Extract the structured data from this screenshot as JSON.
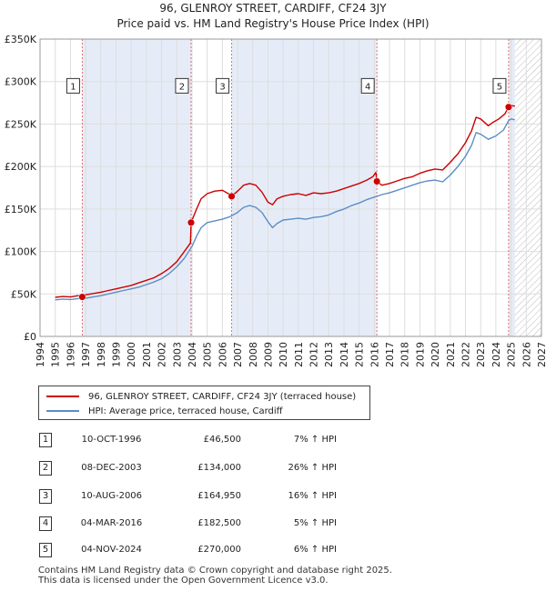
{
  "chart_data": {
    "type": "line",
    "title": "96, GLENROY STREET, CARDIFF, CF24 3JY",
    "subtitle": "Price paid vs. HM Land Registry's House Price Index (HPI)",
    "xlim": [
      1994,
      2027
    ],
    "ylim": [
      0,
      350000
    ],
    "y_ticks": [
      0,
      50000,
      100000,
      150000,
      200000,
      250000,
      300000,
      350000
    ],
    "y_tick_labels": [
      "£0",
      "£50K",
      "£100K",
      "£150K",
      "£200K",
      "£250K",
      "£300K",
      "£350K"
    ],
    "x_ticks": [
      1994,
      1995,
      1996,
      1997,
      1998,
      1999,
      2000,
      2001,
      2002,
      2003,
      2004,
      2005,
      2006,
      2007,
      2008,
      2009,
      2010,
      2011,
      2012,
      2013,
      2014,
      2015,
      2016,
      2017,
      2018,
      2019,
      2020,
      2021,
      2022,
      2023,
      2024,
      2025,
      2026,
      2027
    ],
    "x_tick_labels": [
      "1994",
      "1995",
      "1996",
      "1997",
      "1998",
      "1999",
      "2000",
      "2001",
      "2002",
      "2003",
      "2004",
      "2005",
      "2006",
      "2007",
      "2008",
      "2009",
      "2010",
      "2011",
      "2012",
      "2013",
      "2014",
      "2015",
      "2016",
      "2017",
      "2018",
      "2019",
      "2020",
      "2021",
      "2022",
      "2023",
      "2024",
      "2025",
      "2026",
      "2027"
    ],
    "data_start": 1995.0,
    "data_end": 2025.25,
    "colors": {
      "property": "#cc0000",
      "hpi": "#5b8ec4",
      "shade": "#e6ecf7",
      "grid": "#dddddd",
      "marker_line": "#e07070",
      "hatch": "#bbbbbb"
    },
    "series": [
      {
        "name": "96, GLENROY STREET, CARDIFF, CF24 3JY (terraced house)",
        "color": "#cc0000",
        "x": [
          1995.0,
          1995.5,
          1996.0,
          1996.5,
          1996.78,
          1997.0,
          1997.5,
          1998.0,
          1998.5,
          1999.0,
          1999.5,
          2000.0,
          2000.5,
          2001.0,
          2001.5,
          2002.0,
          2002.5,
          2003.0,
          2003.5,
          2003.9,
          2003.94,
          2004.3,
          2004.6,
          2005.0,
          2005.5,
          2006.0,
          2006.5,
          2006.61,
          2007.0,
          2007.4,
          2007.8,
          2008.2,
          2008.6,
          2009.0,
          2009.3,
          2009.6,
          2010.0,
          2010.5,
          2011.0,
          2011.5,
          2012.0,
          2012.5,
          2013.0,
          2013.5,
          2014.0,
          2014.5,
          2015.0,
          2015.5,
          2015.9,
          2016.1,
          2016.17,
          2016.5,
          2017.0,
          2017.5,
          2018.0,
          2018.5,
          2019.0,
          2019.5,
          2020.0,
          2020.5,
          2021.0,
          2021.5,
          2022.0,
          2022.4,
          2022.7,
          2023.0,
          2023.5,
          2023.8,
          2024.2,
          2024.6,
          2024.84,
          2025.0,
          2025.25
        ],
        "values": [
          46000,
          47000,
          46500,
          48000,
          46500,
          49000,
          50500,
          52000,
          54000,
          56000,
          58000,
          60000,
          63000,
          66000,
          69000,
          74000,
          80000,
          88000,
          100000,
          110000,
          134000,
          150000,
          162000,
          168000,
          171000,
          172000,
          167000,
          164950,
          171000,
          178000,
          180000,
          178000,
          170000,
          158000,
          155000,
          162000,
          165000,
          167000,
          168000,
          166000,
          169000,
          168000,
          169000,
          171000,
          174000,
          177000,
          180000,
          184000,
          188000,
          193000,
          182500,
          178000,
          180000,
          183000,
          186000,
          188000,
          192000,
          195000,
          197000,
          196000,
          205000,
          215000,
          228000,
          242000,
          258000,
          256000,
          248000,
          252000,
          256000,
          262000,
          270000,
          272000,
          271000
        ]
      },
      {
        "name": "HPI: Average price, terraced house, Cardiff",
        "color": "#5b8ec4",
        "x": [
          1995.0,
          1995.5,
          1996.0,
          1996.5,
          1997.0,
          1997.5,
          1998.0,
          1998.5,
          1999.0,
          1999.5,
          2000.0,
          2000.5,
          2001.0,
          2001.5,
          2002.0,
          2002.5,
          2003.0,
          2003.5,
          2004.0,
          2004.3,
          2004.6,
          2005.0,
          2005.5,
          2006.0,
          2006.5,
          2007.0,
          2007.4,
          2007.8,
          2008.2,
          2008.6,
          2009.0,
          2009.3,
          2009.6,
          2010.0,
          2010.5,
          2011.0,
          2011.5,
          2012.0,
          2012.5,
          2013.0,
          2013.5,
          2014.0,
          2014.5,
          2015.0,
          2015.5,
          2016.0,
          2016.5,
          2017.0,
          2017.5,
          2018.0,
          2018.5,
          2019.0,
          2019.5,
          2020.0,
          2020.5,
          2021.0,
          2021.5,
          2022.0,
          2022.4,
          2022.7,
          2023.0,
          2023.5,
          2024.0,
          2024.5,
          2024.84,
          2025.0,
          2025.25
        ],
        "values": [
          43000,
          44000,
          43500,
          44500,
          45000,
          46500,
          48000,
          50000,
          52000,
          54000,
          56000,
          58000,
          61000,
          64000,
          68000,
          74000,
          82000,
          92000,
          106000,
          118000,
          128000,
          134000,
          136000,
          138000,
          141000,
          146000,
          152000,
          154000,
          152000,
          146000,
          135000,
          128000,
          133000,
          137000,
          138000,
          139000,
          138000,
          140000,
          141000,
          143000,
          147000,
          150000,
          154000,
          157000,
          161000,
          164000,
          167000,
          169000,
          172000,
          175000,
          178000,
          181000,
          183000,
          184000,
          182000,
          190000,
          200000,
          212000,
          225000,
          240000,
          238000,
          232000,
          236000,
          243000,
          254000,
          256000,
          255000
        ]
      }
    ],
    "transactions": [
      {
        "num": "1",
        "date": "10-OCT-1996",
        "price": "£46,500",
        "hpi": "7% ↑ HPI",
        "x": 1996.78,
        "value": 46500
      },
      {
        "num": "2",
        "date": "08-DEC-2003",
        "price": "£134,000",
        "hpi": "26% ↑ HPI",
        "x": 2003.94,
        "value": 134000
      },
      {
        "num": "3",
        "date": "10-AUG-2006",
        "price": "£164,950",
        "hpi": "16% ↑ HPI",
        "x": 2006.61,
        "value": 164950
      },
      {
        "num": "4",
        "date": "04-MAR-2016",
        "price": "£182,500",
        "hpi": "5% ↑ HPI",
        "x": 2016.17,
        "value": 182500
      },
      {
        "num": "5",
        "date": "04-NOV-2024",
        "price": "£270,000",
        "hpi": "6% ↑ HPI",
        "x": 2024.84,
        "value": 270000
      }
    ],
    "shaded_periods": [
      [
        1996.78,
        2003.94
      ],
      [
        2006.61,
        2016.17
      ],
      [
        2024.84,
        2025.25
      ]
    ],
    "label_value": 295000
  },
  "footer": {
    "line1": "Contains HM Land Registry data © Crown copyright and database right 2025.",
    "line2": "This data is licensed under the Open Government Licence v3.0."
  }
}
